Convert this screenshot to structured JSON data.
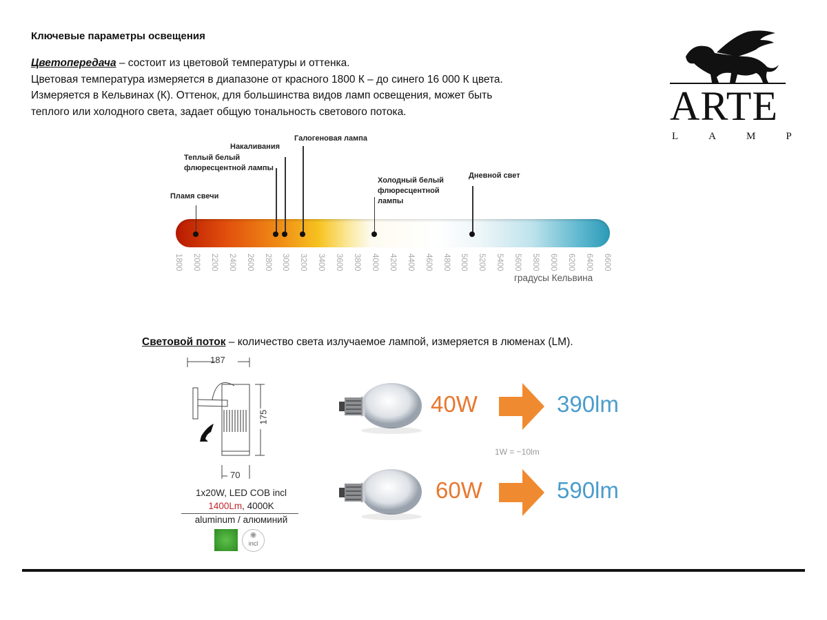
{
  "heading": "Ключевые параметры освещения",
  "color_rendering": {
    "term": "Цветопередача",
    "line1": " – состоит из цветовой температуры и оттенка.",
    "line2": "Цветовая температура измеряется в диапазоне от красного 1800 К – до синего 16 000 К цвета.",
    "line3": "Измеряется в Кельвинах (К). Оттенок, для большинства видов ламп освещения, может быть",
    "line4": "теплого или холодного света, задает общую тональность светового потока."
  },
  "chart_data": {
    "type": "scale",
    "xlabel": "градусы Кельвина",
    "xlim": [
      1800,
      6600
    ],
    "ticks": [
      "1800",
      "2000",
      "2200",
      "2400",
      "2600",
      "2800",
      "3000",
      "3200",
      "3400",
      "3600",
      "3800",
      "4000",
      "4200",
      "4400",
      "4600",
      "4800",
      "5000",
      "5200",
      "5400",
      "5600",
      "5800",
      "6000",
      "6200",
      "6400",
      "6600"
    ],
    "markers": [
      {
        "label": "Пламя свечи",
        "kelvin": 2000
      },
      {
        "label": "Теплый белый флюресцентной лампы",
        "kelvin": 2900
      },
      {
        "label": "Накаливания",
        "kelvin": 3000
      },
      {
        "label": "Галогеновая лампа",
        "kelvin": 3200
      },
      {
        "label": "Холодный белый флюресцентной лампы",
        "kelvin": 4000
      },
      {
        "label": "Дневной свет",
        "kelvin": 5100
      }
    ],
    "gradient_colors": [
      "#b81a00",
      "#f08d16",
      "#f6c320",
      "#ffffff",
      "#2c9ab7"
    ]
  },
  "luminous_flux": {
    "term": "Световой поток",
    "text": " – количество света излучаемое лампой, измеряется в люменах (LM).",
    "ratio": "1W = ~10lm",
    "rows": [
      {
        "watts": "40W",
        "lumens": "390lm"
      },
      {
        "watts": "60W",
        "lumens": "590lm"
      }
    ],
    "watt_color": "#e8772e",
    "lumen_color": "#4a9ccc",
    "arrow_color": "#f08a30"
  },
  "product": {
    "dim_width": "187",
    "dim_height": "175",
    "dim_base": "70",
    "spec1": "1x20W, LED COB incl",
    "lumens": "1400Lm",
    "spec2_rest": ", 4000K",
    "material": "aluminum / алюминий",
    "finish_color": "#3a9a2a",
    "bulb_badge": "incl"
  },
  "logo": {
    "name": "ARTE",
    "sub": "LAMP"
  }
}
